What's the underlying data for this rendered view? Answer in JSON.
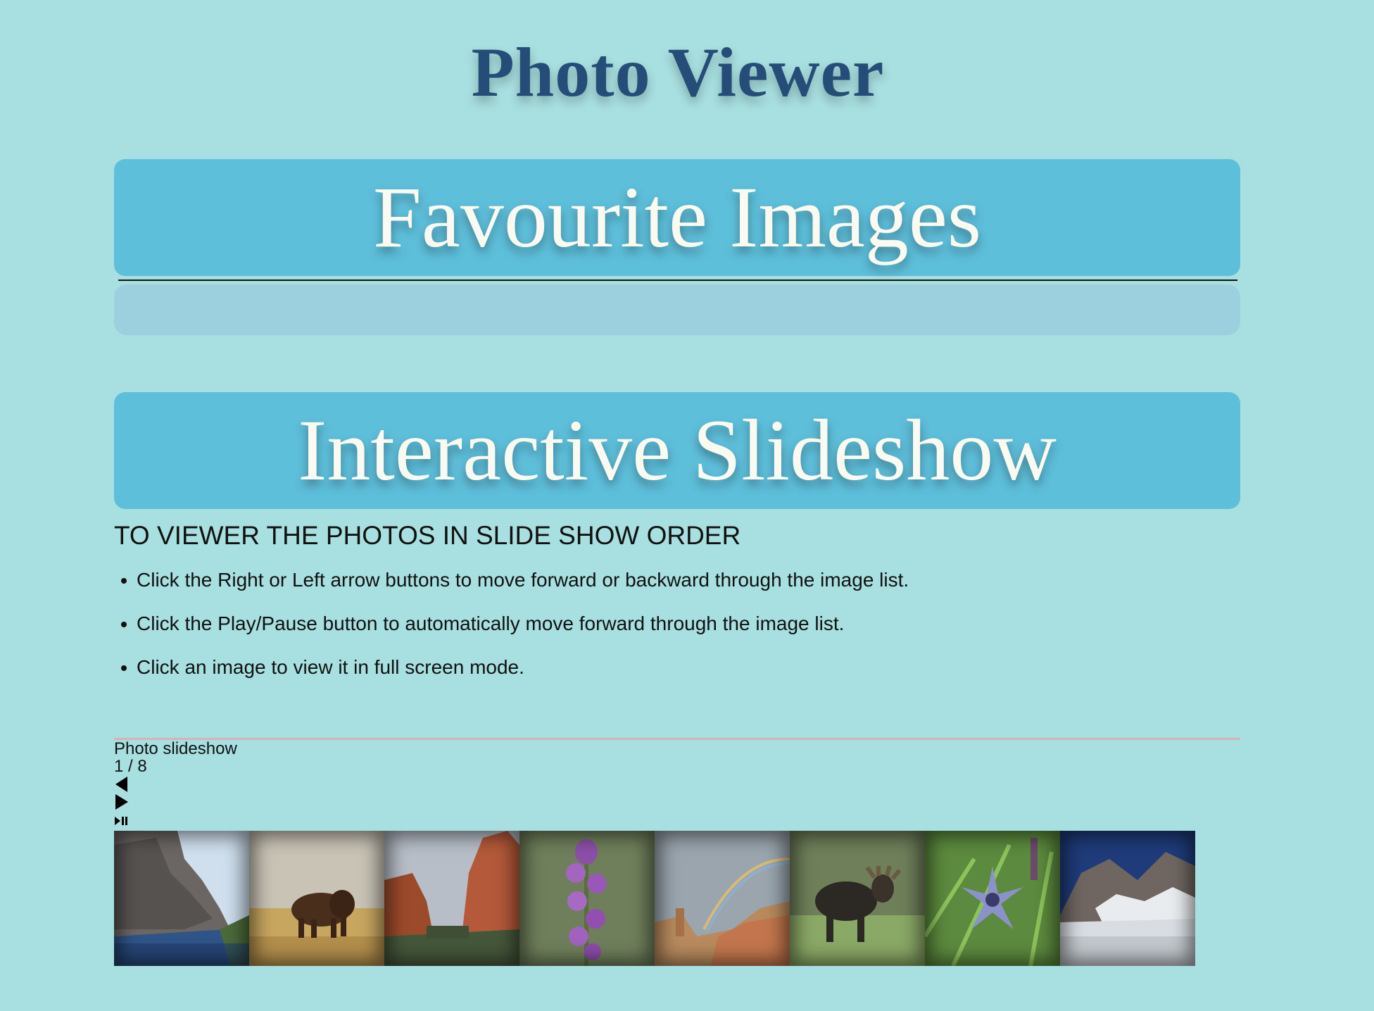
{
  "site": {
    "title": "Photo Viewer"
  },
  "favourites": {
    "heading": "Favourite Images"
  },
  "slideshow_section": {
    "heading": "Interactive Slideshow",
    "instructions_title": "TO VIEWER THE PHOTOS IN SLIDE SHOW ORDER",
    "instructions": [
      "Click the Right or Left arrow buttons to move forward or backward through the image list.",
      "Click the Play/Pause button to automatically move forward through the image list.",
      "Click an image to view it in full screen mode."
    ]
  },
  "slideshow": {
    "label": "Photo slideshow",
    "counter": "1 / 8",
    "thumbnails": [
      "lake-cliff-photo",
      "bison-photo",
      "red-rocks-photo",
      "purple-orchid-photo",
      "canyon-rainbow-photo",
      "moose-photo",
      "blue-flower-photo",
      "mountain-lake-photo"
    ]
  },
  "colors": {
    "page_background": "#a8dfe0",
    "banner": "#5ebfdb",
    "banner_text": "#fbfaf0",
    "title": "#254d78"
  }
}
